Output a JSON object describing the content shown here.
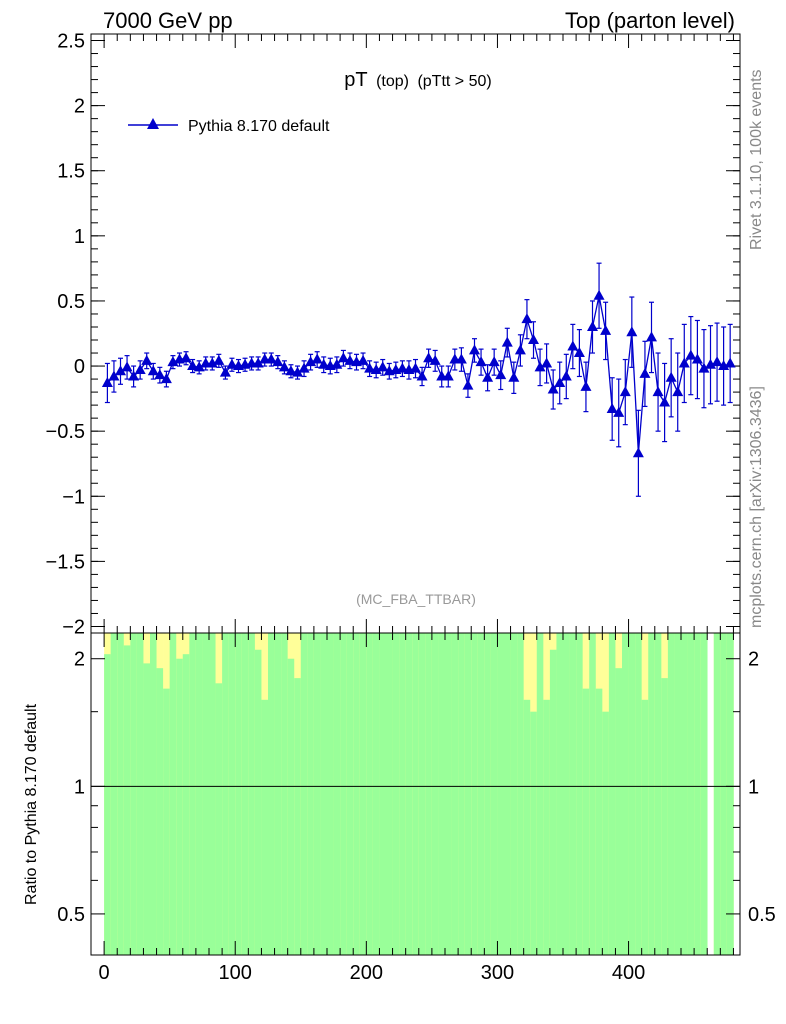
{
  "header": {
    "left": "7000 GeV pp",
    "right": "Top (parton level)",
    "side_top": "Rivet 3.1.10,  100k events",
    "side_bottom": "mcplots.cern.ch [arXiv:1306.3436]",
    "watermark": "(MC_FBA_TTBAR)"
  },
  "chart_data": [
    {
      "type": "line",
      "title_main": "pT",
      "title_sub": "(top)",
      "title_cut": "(pTtt > 50)",
      "xlabel": "",
      "ylabel": "",
      "xlim": [
        -10,
        485
      ],
      "ylim": [
        -2.05,
        2.55
      ],
      "yticks": [
        -2,
        -1.5,
        -1,
        -0.5,
        0,
        0.5,
        1,
        1.5,
        2,
        2.5
      ],
      "ytick_labels": [
        "−2",
        "−1.5",
        "−1",
        "−0.5",
        "0",
        "0.5",
        "1",
        "1.5",
        "2",
        "2.5"
      ],
      "legend": "top-left",
      "series": [
        {
          "name": "Pythia 8.170 default",
          "color": "#0000cc",
          "marker": "triangle",
          "x": [
            2.5,
            7.5,
            12.5,
            17.5,
            22.5,
            27.5,
            32.5,
            37.5,
            42.5,
            47.5,
            52.5,
            57.5,
            62.5,
            67.5,
            72.5,
            77.5,
            82.5,
            87.5,
            92.5,
            97.5,
            102.5,
            107.5,
            112.5,
            117.5,
            122.5,
            127.5,
            132.5,
            137.5,
            142.5,
            147.5,
            152.5,
            157.5,
            162.5,
            167.5,
            172.5,
            177.5,
            182.5,
            187.5,
            192.5,
            197.5,
            202.5,
            207.5,
            212.5,
            217.5,
            222.5,
            227.5,
            232.5,
            237.5,
            242.5,
            247.5,
            252.5,
            257.5,
            262.5,
            267.5,
            272.5,
            277.5,
            282.5,
            287.5,
            292.5,
            297.5,
            302.5,
            307.5,
            312.5,
            317.5,
            322.5,
            327.5,
            332.5,
            337.5,
            342.5,
            347.5,
            352.5,
            357.5,
            362.5,
            367.5,
            372.5,
            377.5,
            382.5,
            387.5,
            392.5,
            397.5,
            402.5,
            407.5,
            412.5,
            417.5,
            422.5,
            427.5,
            432.5,
            437.5,
            442.5,
            447.5,
            452.5,
            457.5,
            462.5,
            467.5,
            472.5,
            477.5
          ],
          "values": [
            -0.13,
            -0.08,
            -0.04,
            -0.01,
            -0.08,
            -0.03,
            0.04,
            -0.04,
            -0.07,
            -0.1,
            0.03,
            0.05,
            0.06,
            0.0,
            -0.01,
            0.02,
            0.02,
            0.04,
            -0.05,
            0.01,
            0.0,
            0.01,
            0.02,
            0.02,
            0.05,
            0.05,
            0.03,
            -0.01,
            -0.04,
            -0.05,
            -0.02,
            0.03,
            0.05,
            0.01,
            0.0,
            0.01,
            0.06,
            0.04,
            0.03,
            0.04,
            -0.02,
            -0.03,
            -0.01,
            -0.04,
            -0.03,
            -0.02,
            -0.03,
            -0.02,
            -0.08,
            0.06,
            0.04,
            -0.08,
            -0.08,
            0.05,
            0.05,
            -0.15,
            0.12,
            0.03,
            -0.09,
            0.03,
            -0.07,
            0.18,
            -0.09,
            0.12,
            0.36,
            0.2,
            -0.01,
            0.02,
            -0.18,
            -0.13,
            -0.08,
            0.15,
            0.1,
            -0.16,
            0.3,
            0.54,
            0.27,
            -0.33,
            -0.36,
            -0.2,
            0.26,
            -0.67,
            -0.06,
            0.22,
            -0.2,
            -0.28,
            -0.09,
            -0.2,
            0.02,
            0.08,
            0.05,
            -0.02,
            0.01,
            0.03,
            0.0,
            0.02
          ],
          "errors": [
            0.15,
            0.12,
            0.1,
            0.09,
            0.08,
            0.07,
            0.06,
            0.06,
            0.06,
            0.06,
            0.05,
            0.05,
            0.05,
            0.05,
            0.05,
            0.05,
            0.05,
            0.05,
            0.05,
            0.05,
            0.05,
            0.05,
            0.05,
            0.05,
            0.05,
            0.05,
            0.05,
            0.05,
            0.05,
            0.05,
            0.06,
            0.06,
            0.06,
            0.06,
            0.06,
            0.06,
            0.06,
            0.06,
            0.06,
            0.06,
            0.06,
            0.06,
            0.06,
            0.06,
            0.06,
            0.06,
            0.07,
            0.07,
            0.07,
            0.07,
            0.08,
            0.08,
            0.08,
            0.08,
            0.09,
            0.09,
            0.09,
            0.1,
            0.1,
            0.1,
            0.11,
            0.11,
            0.12,
            0.12,
            0.15,
            0.14,
            0.14,
            0.15,
            0.15,
            0.16,
            0.17,
            0.17,
            0.18,
            0.19,
            0.2,
            0.25,
            0.22,
            0.24,
            0.26,
            0.25,
            0.27,
            0.33,
            0.25,
            0.27,
            0.3,
            0.3,
            0.3,
            0.3,
            0.3,
            0.3,
            0.3,
            0.3,
            0.3,
            0.3,
            0.3,
            0.3
          ]
        }
      ]
    },
    {
      "type": "bar",
      "ylabel": "Ratio to Pythia 8.170 default",
      "xlim": [
        -10,
        485
      ],
      "ylim": [
        0.4,
        2.3
      ],
      "yscale": "log",
      "reference": 1,
      "yticks": [
        0.5,
        1,
        2
      ],
      "ytick_labels": [
        "0.5",
        "1",
        "2"
      ],
      "xticks": [
        0,
        100,
        200,
        300,
        400
      ],
      "xtick_labels": [
        "0",
        "100",
        "200",
        "300",
        "400"
      ],
      "band_colors": {
        "stat": "#99ff99",
        "total": "#ffff99"
      },
      "bin_width": 5,
      "band_green_lo": [
        0.4,
        0.4,
        0.4,
        0.4,
        0.4,
        0.4,
        0.4,
        0.4,
        0.4,
        0.4,
        0.4,
        0.4,
        0.4,
        0.4,
        0.4,
        0.4,
        0.4,
        0.4,
        0.4,
        0.4,
        0.4,
        0.4,
        0.4,
        0.4,
        0.4,
        0.4,
        0.4,
        0.4,
        0.4,
        0.4,
        0.4,
        0.4,
        0.4,
        0.4,
        0.4,
        0.4,
        0.4,
        0.4,
        0.4,
        0.4,
        0.4,
        0.4,
        0.4,
        0.4,
        0.4,
        0.4,
        0.4,
        0.4,
        0.4,
        0.4,
        0.4,
        0.4,
        0.4,
        0.4,
        0.4,
        0.4,
        0.4,
        0.4,
        0.4,
        0.4,
        0.4,
        0.4,
        0.4,
        0.4,
        0.4,
        0.4,
        0.4,
        0.4,
        0.4,
        0.4,
        0.4,
        0.4,
        0.4,
        0.4,
        0.4,
        0.4,
        0.4,
        0.4,
        0.4,
        0.4,
        0.4,
        0.4,
        0.4,
        0.4,
        0.4,
        0.4,
        0.4,
        0.4,
        0.4,
        0.4,
        0.4,
        0.4,
        0.4,
        0.4,
        0.4,
        0.4
      ],
      "band_green_hi": [
        2.3,
        2.3,
        2.3,
        2.3,
        2.3,
        2.3,
        2.3,
        2.3,
        2.3,
        2.3,
        2.3,
        2.3,
        2.3,
        2.3,
        2.3,
        2.3,
        2.3,
        2.3,
        2.3,
        2.3,
        2.3,
        2.3,
        2.3,
        2.3,
        2.3,
        2.3,
        2.3,
        2.3,
        2.3,
        2.3,
        2.3,
        2.3,
        2.3,
        2.3,
        2.3,
        2.3,
        2.3,
        2.3,
        2.3,
        2.3,
        2.3,
        2.3,
        2.3,
        2.3,
        2.3,
        2.3,
        2.3,
        2.3,
        2.3,
        2.3,
        2.3,
        2.3,
        2.3,
        2.3,
        2.3,
        2.3,
        2.3,
        2.3,
        2.3,
        2.3,
        2.3,
        2.3,
        2.3,
        2.3,
        2.3,
        2.3,
        2.3,
        2.3,
        2.3,
        2.3,
        2.3,
        2.3,
        2.3,
        2.3,
        2.3,
        2.3,
        2.3,
        2.3,
        2.3,
        2.3,
        2.3,
        2.3,
        2.3,
        2.3,
        2.3,
        2.3,
        2.3,
        2.3,
        2.3,
        2.3,
        2.3,
        2.3,
        2.3,
        2.3,
        2.3,
        2.3
      ],
      "band_yellow_hi": [
        2.3,
        2.3,
        2.3,
        2.3,
        2.3,
        2.3,
        2.3,
        2.3,
        2.3,
        2.3,
        2.3,
        2.3,
        2.3,
        2.3,
        2.3,
        2.3,
        2.3,
        2.3,
        2.3,
        2.3,
        2.3,
        2.3,
        2.3,
        2.3,
        2.3,
        2.3,
        2.3,
        2.3,
        2.3,
        2.3,
        2.3,
        2.3,
        2.3,
        2.3,
        2.3,
        2.3,
        2.3,
        2.3,
        2.3,
        2.3,
        2.3,
        2.3,
        2.3,
        2.3,
        2.3,
        2.3,
        2.3,
        2.3,
        2.3,
        2.3,
        2.3,
        2.3,
        2.3,
        2.3,
        2.3,
        2.3,
        2.3,
        2.3,
        2.3,
        2.3,
        2.3,
        2.3,
        2.3,
        2.3,
        2.3,
        2.3,
        2.3,
        2.3,
        2.3,
        2.3,
        2.3,
        2.3,
        2.3,
        2.3,
        2.3,
        2.3,
        2.3,
        2.3,
        2.3,
        2.3,
        2.3,
        2.3,
        2.3,
        2.3,
        2.3,
        2.3,
        2.3,
        2.3,
        2.3,
        2.3,
        2.3,
        2.3,
        2.3,
        2.3,
        2.3,
        2.3
      ],
      "band_green_top": [
        2.05,
        2.3,
        2.3,
        2.15,
        2.3,
        2.3,
        1.95,
        2.3,
        1.9,
        1.7,
        2.3,
        2.0,
        2.05,
        2.3,
        2.3,
        2.3,
        2.3,
        1.75,
        2.3,
        2.3,
        2.3,
        2.3,
        2.3,
        2.1,
        1.6,
        2.3,
        2.3,
        2.3,
        2.0,
        1.8,
        2.3,
        2.3,
        2.3,
        2.3,
        2.3,
        2.3,
        2.3,
        2.3,
        2.3,
        2.3,
        2.3,
        2.3,
        2.3,
        2.3,
        2.3,
        2.3,
        2.3,
        2.3,
        2.3,
        2.3,
        2.3,
        2.3,
        2.3,
        2.3,
        2.3,
        2.3,
        2.3,
        2.3,
        2.3,
        2.3,
        2.3,
        2.3,
        2.3,
        2.3,
        1.6,
        1.5,
        2.3,
        1.6,
        2.1,
        2.3,
        2.3,
        2.3,
        2.3,
        1.7,
        2.3,
        1.7,
        1.5,
        2.3,
        1.9,
        2.3,
        2.3,
        2.3,
        1.6,
        2.3,
        2.3,
        1.8,
        2.3,
        2.3,
        2.3,
        2.3,
        2.3,
        2.3,
        2.3,
        2.3,
        2.3,
        2.3
      ],
      "band_gap_bins": [
        92
      ]
    }
  ]
}
